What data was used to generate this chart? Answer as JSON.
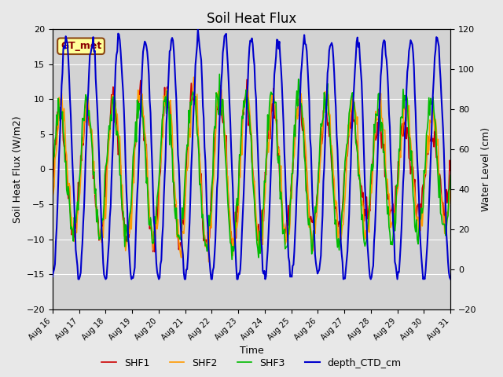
{
  "title": "Soil Heat Flux",
  "xlabel": "Time",
  "ylabel_left": "Soil Heat Flux (W/m2)",
  "ylabel_right": "Water Level (cm)",
  "ylim_left": [
    -20,
    20
  ],
  "ylim_right": [
    -20,
    120
  ],
  "yticks_left": [
    -20,
    -15,
    -10,
    -5,
    0,
    5,
    10,
    15,
    20
  ],
  "yticks_right": [
    -20,
    0,
    20,
    40,
    60,
    80,
    100,
    120
  ],
  "xtick_labels": [
    "Aug 16",
    "Aug 17",
    "Aug 18",
    "Aug 19",
    "Aug 20",
    "Aug 21",
    "Aug 22",
    "Aug 23",
    "Aug 24",
    "Aug 25",
    "Aug 26",
    "Aug 27",
    "Aug 28",
    "Aug 29",
    "Aug 30",
    "Aug 31"
  ],
  "legend_entries": [
    "SHF1",
    "SHF2",
    "SHF3",
    "depth_CTD_cm"
  ],
  "legend_colors": [
    "#cc0000",
    "#ff9900",
    "#00bb00",
    "#0000cc"
  ],
  "annotation_text": "GT_met",
  "annotation_color": "#8b0000",
  "annotation_bg": "#ffff99",
  "annotation_border": "#8b4513",
  "background_color": "#d3d3d3",
  "grid_color": "#ffffff",
  "n_points": 480,
  "seed": 42
}
